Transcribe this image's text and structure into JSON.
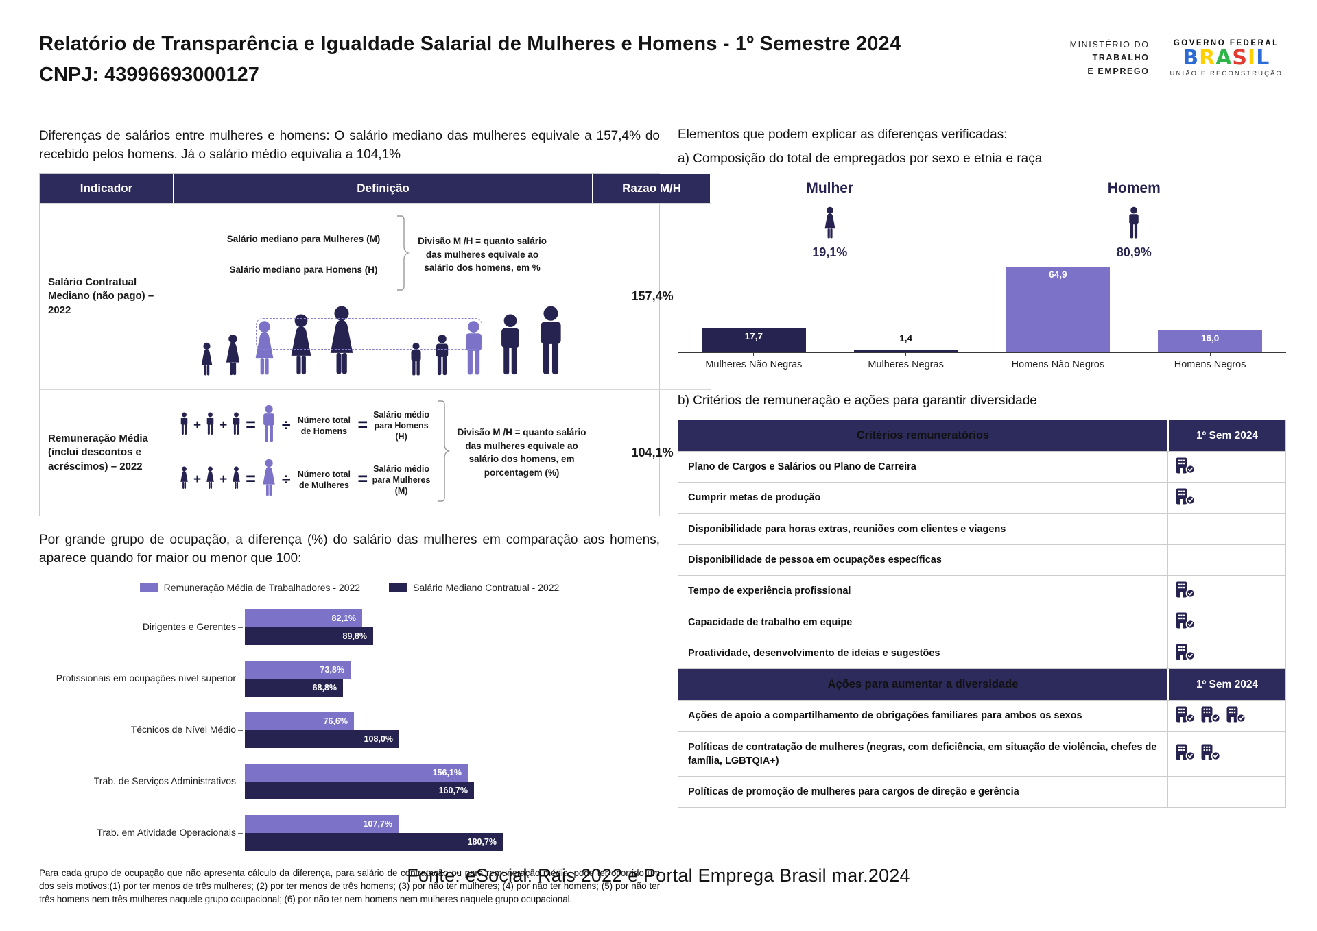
{
  "colors": {
    "navy": "#272351",
    "navy_header": "#2D2A5C",
    "purple": "#7C73C9",
    "text": "#1A1A1A"
  },
  "header": {
    "title": "Relatório de Transparência e Igualdade Salarial de Mulheres e Homens - 1º Semestre 2024",
    "cnpj": "CNPJ: 43996693000127",
    "ministry_lines": [
      "MINISTÉRIO DO",
      "TRABALHO",
      "E EMPREGO"
    ],
    "gov": {
      "top": "GOVERNO FEDERAL",
      "word": "BRASIL",
      "letter_colors": [
        "#2B6BD3",
        "#FFD000",
        "#2FB54A",
        "#E23B30",
        "#FFD000",
        "#2B6BD3"
      ],
      "bottom": "UNIÃO E RECONSTRUÇÃO"
    }
  },
  "left": {
    "intro": "Diferenças de salários entre mulheres e homens: O salário mediano das mulheres equivale a 157,4% do recebido pelos homens. Já o salário médio equivalia a 104,1%",
    "table": {
      "headers": [
        "Indicador",
        "Definição",
        "Razao M/H"
      ],
      "row1": {
        "indicator": "Salário Contratual Mediano (não pago) – 2022",
        "line_women": "Salário mediano para Mulheres (M)",
        "line_men": "Salário mediano para Homens (H)",
        "note": "Divisão M /H = quanto salário das mulheres equivale ao salário dos homens, em %",
        "ratio": "157,4%"
      },
      "row2": {
        "indicator": "Remuneração Média (inclui descontos e acréscimos) – 2022",
        "formulas": [
          {
            "gender": "man",
            "count": "Número total de Homens",
            "avg": "Salário médio para Homens (H)"
          },
          {
            "gender": "woman",
            "count": "Número total de Mulheres",
            "avg": "Salário médio para Mulheres (M)"
          }
        ],
        "note": "Divisão M /H = quanto salário das mulheres equivale ao salário dos homens, em porcentagem (%)",
        "ratio": "104,1%"
      }
    },
    "occupation_intro": "Por grande grupo de ocupação, a diferença (%) do salário das mulheres em comparação aos homens, aparece quando for maior ou menor que 100:",
    "footnote": "Para cada grupo de ocupação que não apresenta cálculo da diferença, para salário de contratação ou para remuneração média, pode ter ocorrido um dos seis motivos:(1) por ter menos de três mulheres; (2) por ter menos de três homens; (3) por não ter mulheres; (4) por não ter homens; (5) por não ter três homens nem três mulheres naquele grupo ocupacional; (6) por não ter nem homens nem mulheres naquele grupo ocupacional."
  },
  "right": {
    "elements_title": "Elementos que podem explicar as diferenças verificadas:",
    "section_a": "a) Composição do total de empregados por sexo e etnia e raça",
    "section_b": "b) Critérios de remuneração e ações para garantir diversidade",
    "criteria_table": {
      "period": "1º Sem 2024",
      "sections": [
        {
          "header": "Critérios remuneratórios",
          "rows": [
            {
              "label": "Plano de Cargos e Salários ou Plano de Carreira",
              "marks": 1
            },
            {
              "label": "Cumprir metas de produção",
              "marks": 1
            },
            {
              "label": "Disponibilidade para horas extras, reuniões com clientes e viagens",
              "marks": 0
            },
            {
              "label": "Disponibilidade de pessoa em ocupações específicas",
              "marks": 0
            },
            {
              "label": "Tempo de experiência profissional",
              "marks": 1
            },
            {
              "label": "Capacidade de trabalho em equipe",
              "marks": 1
            },
            {
              "label": "Proatividade, desenvolvimento de ideias e sugestões",
              "marks": 1
            }
          ]
        },
        {
          "header": "Ações para aumentar a diversidade",
          "rows": [
            {
              "label": "Ações de apoio a compartilhamento de obrigações familiares para ambos os sexos",
              "marks": 3
            },
            {
              "label": "Políticas de contratação de mulheres (negras, com deficiência, em situação de violência, chefes de família, LGBTQIA+)",
              "marks": 2
            },
            {
              "label": "Políticas de promoção de mulheres para cargos de direção e gerência",
              "marks": 0
            }
          ]
        }
      ]
    }
  },
  "chart_data": [
    {
      "id": "composition_by_sex_race",
      "type": "bar",
      "title": "a) Composição do total de empregados por sexo e etnia e raça",
      "categories": [
        "Mulheres Não Negras",
        "Mulheres Negras",
        "Homens Não Negros",
        "Homens Negros"
      ],
      "values": [
        17.7,
        1.4,
        64.9,
        16.0
      ],
      "value_labels": [
        "17,7",
        "1,4",
        "64,9",
        "16,0"
      ],
      "bar_colors": [
        "#272351",
        "#272351",
        "#7C73C9",
        "#7C73C9"
      ],
      "ylim": [
        0,
        70
      ],
      "grid": false,
      "gender_totals": [
        {
          "gender": "woman",
          "label": "Mulher",
          "value_label": "19,1%"
        },
        {
          "gender": "man",
          "label": "Homem",
          "value_label": "80,9%"
        }
      ]
    },
    {
      "id": "occupation_wage_gap",
      "type": "bar",
      "orientation": "horizontal",
      "categories": [
        "Dirigentes e Gerentes",
        "Profissionais em ocupações nível superior",
        "Técnicos de Nível Médio",
        "Trab. de Serviços Administrativos",
        "Trab. em Atividade Operacionais"
      ],
      "series": [
        {
          "name": "Remuneração Média de Trabalhadores - 2022",
          "color": "#7C73C9",
          "values": [
            82.1,
            73.8,
            76.6,
            156.1,
            107.7
          ],
          "value_labels": [
            "82,1%",
            "73,8%",
            "76,6%",
            "156,1%",
            "107,7%"
          ]
        },
        {
          "name": "Salário Mediano Contratual - 2022",
          "color": "#272351",
          "values": [
            89.8,
            68.8,
            108.0,
            160.7,
            180.7
          ],
          "value_labels": [
            "89,8%",
            "68,8%",
            "108,0%",
            "160,7%",
            "180,7%"
          ]
        }
      ],
      "xlim": [
        0,
        200
      ],
      "grid": false,
      "legend_position": "top"
    }
  ],
  "footer": {
    "source": "Fonte: eSocial. Rais 2022 e Portal Emprega Brasil mar.2024"
  }
}
